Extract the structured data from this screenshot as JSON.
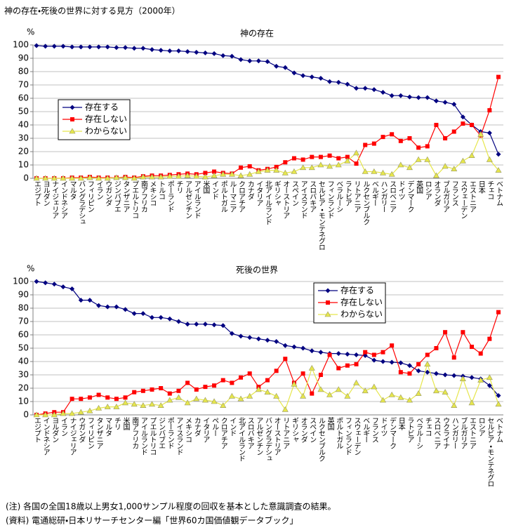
{
  "title": "神の存在・死後の世界に対する見方（2000年）",
  "notes": [
    "(注) 各国の全国18歳以上男女1,000サンプル程度の回収を基本とした意識調査の結果。",
    "(資料) 電通総研・日本リサーチセンター編「世界60カ国価値観データブック」"
  ],
  "chart_data": [
    {
      "type": "line",
      "title": "神の存在",
      "y_unit": "%",
      "ylim": [
        0,
        100
      ],
      "yticks": [
        0,
        10,
        20,
        30,
        40,
        50,
        60,
        70,
        80,
        90,
        100
      ],
      "grid": true,
      "legend": "left",
      "categories": [
        "エジプト",
        "ヨルダン",
        "ナイジェリア",
        "インドネシア",
        "マルタ",
        "バングラデシュ",
        "フィリピン",
        "イラン",
        "ウガンダ",
        "ジンバブエ",
        "タンザニア",
        "プエルトリコ",
        "南アフリカ",
        "メキシコ",
        "トルコ",
        "ポーランド",
        "チリ",
        "アルゼンチン",
        "アイルランド",
        "米国",
        "インド",
        "ポルトガル",
        "ルーマニア",
        "クロアチア",
        "カナダ",
        "イタリア",
        "北アイルランド",
        "ギリシャ",
        "オーストリア",
        "スペイン",
        "アイスランド",
        "スロバキア",
        "セルビア・モンテネグロ",
        "フィンランド",
        "ベラルーシ",
        "ラトビア",
        "リトアニア",
        "ルクセンブルク",
        "ベルギー",
        "ハンガリー",
        "スロベニア",
        "ドイツ",
        "デンマーク",
        "英国",
        "ロシア",
        "オランダ",
        "ブルガリア",
        "フランス",
        "スウェーデン",
        "エストニア",
        "日本",
        "チェコ",
        "ベトナム"
      ],
      "series": [
        {
          "name": "存在する",
          "color": "#000080",
          "marker": "diamond",
          "values": [
            99.5,
            99,
            99,
            99,
            98.5,
            98.5,
            98.5,
            98.5,
            98.5,
            98,
            98,
            97.5,
            97.5,
            96.5,
            96,
            95.5,
            95.5,
            95,
            94.5,
            94,
            93.5,
            92,
            91.5,
            89,
            88,
            88,
            87.5,
            84,
            83,
            79,
            77,
            76,
            75,
            72.5,
            72,
            70.5,
            67.5,
            67.5,
            66.5,
            64.5,
            62,
            62,
            61,
            60.5,
            60.5,
            58,
            57,
            55.5,
            46,
            40,
            35,
            34,
            18
          ]
        },
        {
          "name": "存在しない",
          "color": "#ff0000",
          "marker": "square",
          "values": [
            0,
            0,
            0,
            0,
            0.5,
            0.5,
            1,
            0.5,
            0.5,
            0.5,
            1,
            0.5,
            1.5,
            2,
            2,
            2.5,
            3,
            3.5,
            3,
            4,
            5,
            4,
            3.5,
            8,
            9,
            6,
            7,
            8.5,
            12,
            15,
            14,
            16,
            16,
            17,
            15,
            16,
            11,
            25,
            26,
            31,
            33,
            28,
            30,
            23,
            24,
            40,
            30,
            35,
            41,
            40,
            32,
            51,
            76
          ]
        },
        {
          "name": "わからない",
          "color": "#e6e64c",
          "marker": "triangle",
          "values": [
            0,
            0,
            0,
            0,
            0,
            0,
            0.5,
            0,
            0,
            0.5,
            0.5,
            0,
            1,
            1,
            1,
            1.5,
            1.5,
            2,
            1.5,
            1,
            2,
            3,
            3,
            2,
            3,
            5,
            6,
            6,
            4,
            5,
            8,
            8,
            10,
            9,
            10,
            13,
            19,
            5,
            5,
            4,
            3,
            10,
            8,
            14,
            14,
            2,
            9,
            7,
            13,
            17,
            33,
            14,
            6
          ]
        }
      ]
    },
    {
      "type": "line",
      "title": "死後の世界",
      "y_unit": "%",
      "ylim": [
        0,
        100
      ],
      "yticks": [
        0,
        10,
        20,
        30,
        40,
        50,
        60,
        70,
        80,
        90,
        100
      ],
      "grid": true,
      "legend": "right",
      "categories": [
        "エジプト",
        "インドネシア",
        "ヨルダン",
        "イラン",
        "ナイジェリア",
        "ウガンダ",
        "フィリピン",
        "タンザニア",
        "マルタ",
        "チリ",
        "米国",
        "南アフリカ",
        "アイルランド",
        "プエルトリコ",
        "ジンバブエ",
        "ポーランド",
        "アイスランド",
        "メキシコ",
        "カナダ",
        "イタリア",
        "ペルー",
        "クロアチア",
        "インド",
        "北アイルランド",
        "スロバキア",
        "アルゼンチン",
        "バングラデシュ",
        "オーストリア",
        "リトアニア",
        "ギリシャ",
        "オランダ",
        "スペイン",
        "ルクセンブルク",
        "英国",
        "ポルトガル",
        "フィンランド",
        "スウェーデン",
        "ベルギー",
        "フランス",
        "ドイツ",
        "デンマーク",
        "日本",
        "ラトビア",
        "ベラルーシ",
        "チェコ",
        "スロベニア",
        "ウクライナ",
        "ハンガリー",
        "ブルガリア",
        "エストニア",
        "ロシア",
        "セルビア・モンテネグロ",
        "ベトナム"
      ],
      "series": [
        {
          "name": "存在する",
          "color": "#000080",
          "marker": "diamond",
          "values": [
            100,
            99,
            98,
            96,
            94.5,
            86,
            86,
            82,
            81,
            81,
            79,
            76,
            76,
            73,
            73,
            72,
            70,
            68,
            68,
            68,
            67.5,
            67,
            61,
            59,
            58,
            57,
            56,
            55,
            52,
            51,
            50,
            48,
            47,
            46,
            46,
            45.5,
            45,
            44.5,
            41,
            40,
            39.5,
            39,
            37,
            33,
            32,
            31,
            30,
            29.5,
            29,
            28,
            27,
            22,
            14.5
          ]
        },
        {
          "name": "存在しない",
          "color": "#ff0000",
          "marker": "square",
          "values": [
            0,
            1,
            2,
            2,
            12,
            12,
            13,
            15,
            13,
            12,
            13,
            17,
            18,
            19,
            20,
            16,
            18,
            24,
            19,
            21,
            22,
            26,
            24,
            28,
            31,
            21,
            26,
            33,
            42,
            24,
            31,
            16,
            30,
            45,
            35,
            37,
            38,
            47,
            45,
            47,
            52,
            32,
            31,
            38,
            45,
            50,
            62,
            43,
            62,
            51,
            46,
            57,
            77
          ]
        },
        {
          "name": "わからない",
          "color": "#e6e64c",
          "marker": "triangle",
          "values": [
            0,
            0,
            0,
            1,
            1,
            2,
            3,
            5,
            6,
            6,
            9,
            8,
            7,
            8,
            7,
            11,
            13,
            9,
            12,
            11,
            10,
            7,
            14,
            12,
            14,
            19,
            17,
            14,
            4,
            23,
            14,
            35,
            19,
            15,
            19,
            14,
            24,
            18,
            21,
            11,
            15,
            13,
            11,
            16,
            38,
            18,
            17,
            7,
            27,
            9,
            26,
            28,
            8
          ]
        }
      ]
    }
  ]
}
